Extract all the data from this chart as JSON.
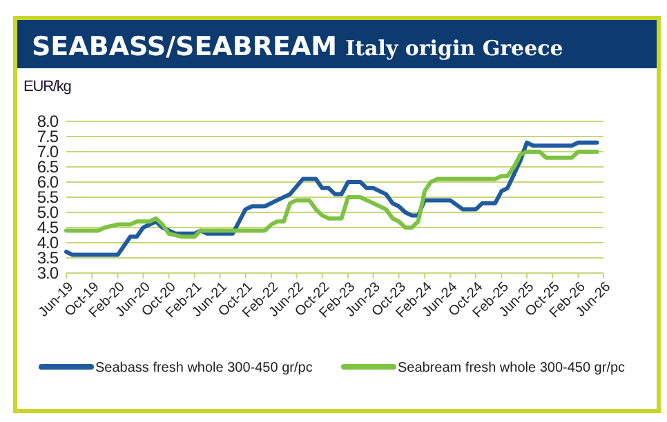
{
  "chart_data": {
    "type": "line",
    "title": "SEABASS/SEABREAM",
    "subtitle": "Italy origin Greece",
    "ylabel": "EUR/kg",
    "xlim": [
      "2019-06",
      "2026-06"
    ],
    "xticks": [
      {
        "value": "2019-06",
        "label": "Jun-19"
      },
      {
        "value": "2019-10",
        "label": "Oct-19"
      },
      {
        "value": "2020-02",
        "label": "Feb-20"
      },
      {
        "value": "2020-06",
        "label": "Jun-20"
      },
      {
        "value": "2020-10",
        "label": "Oct-20"
      },
      {
        "value": "2021-02",
        "label": "Feb-21"
      },
      {
        "value": "2021-06",
        "label": "Jun-21"
      },
      {
        "value": "2021-10",
        "label": "Oct-21"
      },
      {
        "value": "2022-02",
        "label": "Feb-22"
      },
      {
        "value": "2022-06",
        "label": "Jun-22"
      },
      {
        "value": "2022-10",
        "label": "Oct-22"
      },
      {
        "value": "2023-02",
        "label": "Feb-23"
      },
      {
        "value": "2023-06",
        "label": "Jun-23"
      },
      {
        "value": "2023-10",
        "label": "Oct-23"
      },
      {
        "value": "2024-02",
        "label": "Feb-24"
      },
      {
        "value": "2024-06",
        "label": "Jun-24"
      },
      {
        "value": "2024-10",
        "label": "Oct-24"
      },
      {
        "value": "2025-02",
        "label": "Feb-25"
      },
      {
        "value": "2025-06",
        "label": "Jun-25"
      },
      {
        "value": "2025-10",
        "label": "Oct-25"
      },
      {
        "value": "2026-02",
        "label": "Feb-26"
      },
      {
        "value": "2026-06",
        "label": "Jun-26"
      }
    ],
    "ylim": [
      3,
      8
    ],
    "yticks": [
      {
        "value": 3,
        "label": "3.0"
      },
      {
        "value": 3.5,
        "label": "3.5"
      },
      {
        "value": 4,
        "label": "4.0"
      },
      {
        "value": 4.5,
        "label": "4.5"
      },
      {
        "value": 5,
        "label": "5.0"
      },
      {
        "value": 5.5,
        "label": "5.5"
      },
      {
        "value": 6,
        "label": "6.0"
      },
      {
        "value": 6.5,
        "label": "6.5"
      },
      {
        "value": 7,
        "label": "7.0"
      },
      {
        "value": 7.5,
        "label": "7.5"
      },
      {
        "value": 8,
        "label": "8.0"
      }
    ],
    "grid": "y",
    "legend": "bottom",
    "series": [
      {
        "name": "Seabass fresh whole 300-450 gr/pc",
        "color": "#1f5b9e",
        "x": [
          "2019-06",
          "2019-07",
          "2020-02",
          "2020-04",
          "2020-05",
          "2020-06",
          "2020-08",
          "2020-09",
          "2020-11",
          "2021-02",
          "2021-03",
          "2021-04",
          "2021-08",
          "2021-09",
          "2021-10",
          "2021-11",
          "2022-01",
          "2022-03",
          "2022-05",
          "2022-07",
          "2022-09",
          "2022-10",
          "2022-11",
          "2022-12",
          "2023-01",
          "2023-02",
          "2023-04",
          "2023-05",
          "2023-06",
          "2023-08",
          "2023-09",
          "2023-10",
          "2023-11",
          "2023-12",
          "2024-01",
          "2024-02",
          "2024-06",
          "2024-08",
          "2024-10",
          "2024-11",
          "2025-01",
          "2025-02",
          "2025-03",
          "2025-05",
          "2025-06",
          "2025-07",
          "2026-01",
          "2026-02",
          "2026-05"
        ],
        "values": [
          3.7,
          3.6,
          3.6,
          4.2,
          4.2,
          4.5,
          4.7,
          4.5,
          4.3,
          4.3,
          4.4,
          4.3,
          4.3,
          4.7,
          5.1,
          5.2,
          5.2,
          5.4,
          5.6,
          6.1,
          6.1,
          5.8,
          5.8,
          5.6,
          5.6,
          6.0,
          6.0,
          5.8,
          5.8,
          5.6,
          5.3,
          5.2,
          5.0,
          4.9,
          4.9,
          5.4,
          5.4,
          5.1,
          5.1,
          5.3,
          5.3,
          5.7,
          5.8,
          6.7,
          7.3,
          7.2,
          7.2,
          7.3,
          7.3
        ]
      },
      {
        "name": "Seabream fresh whole 300-450 gr/pc",
        "color": "#7dc242",
        "x": [
          "2019-06",
          "2019-11",
          "2019-12",
          "2020-02",
          "2020-04",
          "2020-05",
          "2020-07",
          "2020-08",
          "2020-09",
          "2020-10",
          "2020-12",
          "2021-02",
          "2021-03",
          "2022-01",
          "2022-02",
          "2022-03",
          "2022-04",
          "2022-05",
          "2022-06",
          "2022-08",
          "2022-09",
          "2022-10",
          "2022-11",
          "2023-01",
          "2023-02",
          "2023-04",
          "2023-05",
          "2023-06",
          "2023-08",
          "2023-09",
          "2023-10",
          "2023-11",
          "2023-12",
          "2024-01",
          "2024-02",
          "2024-03",
          "2024-04",
          "2025-01",
          "2025-02",
          "2025-03",
          "2025-04",
          "2025-05",
          "2025-06",
          "2025-08",
          "2025-09",
          "2026-01",
          "2026-02",
          "2026-05"
        ],
        "values": [
          4.4,
          4.4,
          4.5,
          4.6,
          4.6,
          4.7,
          4.7,
          4.8,
          4.6,
          4.3,
          4.2,
          4.2,
          4.4,
          4.4,
          4.6,
          4.7,
          4.7,
          5.3,
          5.4,
          5.4,
          5.1,
          4.9,
          4.8,
          4.8,
          5.5,
          5.5,
          5.4,
          5.3,
          5.1,
          4.8,
          4.7,
          4.5,
          4.5,
          4.7,
          5.7,
          6.0,
          6.1,
          6.1,
          6.2,
          6.2,
          6.5,
          6.9,
          7.0,
          7.0,
          6.8,
          6.8,
          7.0,
          7.0
        ]
      }
    ]
  }
}
